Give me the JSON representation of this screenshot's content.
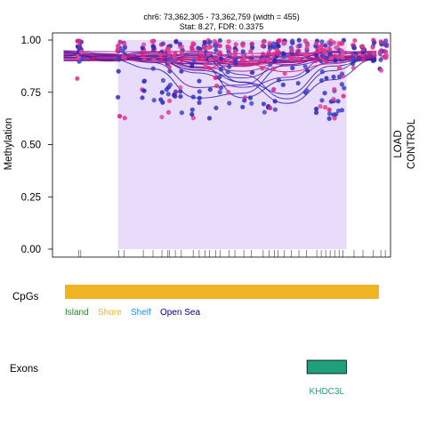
{
  "chart_data": {
    "type": "scatter",
    "title": "chr6: 73,362,305 - 73,362,759 (width = 455)",
    "subtitle": "Stat: 8.27, FDR: 0.3375",
    "ylabel": "Methylation",
    "ylim": [
      0,
      1
    ],
    "y_ticks": [
      "0.00",
      "0.25",
      "0.50",
      "0.75",
      "1.00"
    ],
    "y_tick_values": [
      0,
      0.25,
      0.5,
      0.75,
      1.0
    ],
    "xlim": [
      73362305,
      73362759
    ],
    "dmr_region": [
      73362393,
      73362700
    ],
    "cpg_positions": [
      73362340,
      73362343,
      73362394,
      73362401,
      73362427,
      73362440,
      73362452,
      73362460,
      73362462,
      73362470,
      73362478,
      73362494,
      73362502,
      73362510,
      73362516,
      73362524,
      73362530,
      73362542,
      73362550,
      73362562,
      73362572,
      73362588,
      73362596,
      73362603,
      73362608,
      73362616,
      73362626,
      73362636,
      73362646,
      73362660,
      73362666,
      73362672,
      73362678,
      73362684,
      73362690,
      73362695,
      73362710,
      73362722,
      73362736,
      73362746,
      73362752
    ],
    "series": [
      {
        "name": "LOAD",
        "color": "#d6197a"
      },
      {
        "name": "CONTROL",
        "color": "#1f1fb4"
      }
    ],
    "shade_color": "#e9dcfb"
  },
  "annotation_tracks": {
    "cpgs_label": "CpGs",
    "legend": [
      {
        "label": "Island",
        "color": "#228b22"
      },
      {
        "label": "Shore",
        "color": "#f0b323"
      },
      {
        "label": "Shelf",
        "color": "#1e90ff"
      },
      {
        "label": "Open Sea",
        "color": "#00008b"
      }
    ],
    "cpg_bar": {
      "start": 73362305,
      "end": 73362759,
      "color": "#efb323",
      "category": "Shore"
    },
    "exons_label": "Exons",
    "exon": {
      "name": "KHDC3L",
      "start": 73362655,
      "end": 73362712,
      "color": "#1ea07a"
    }
  }
}
